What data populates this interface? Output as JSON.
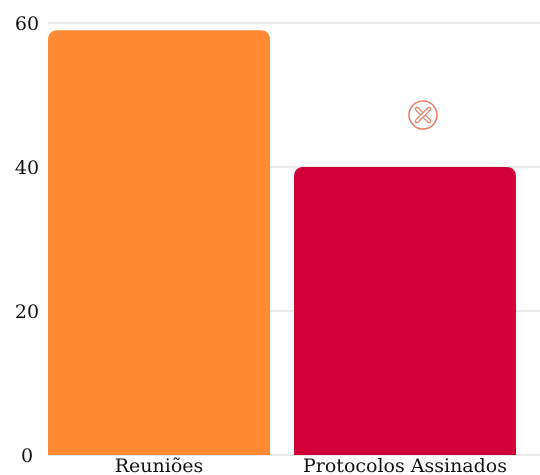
{
  "chart_data": {
    "type": "bar",
    "categories": [
      "Reuniões",
      "Protocolos Assinados"
    ],
    "values": [
      59,
      40
    ],
    "colors": [
      "#FF8A33",
      "#D20038"
    ],
    "ylim": [
      0,
      60
    ],
    "yticks": [
      0,
      20,
      40,
      60
    ],
    "grid": true,
    "title": "",
    "xlabel": "",
    "ylabel": ""
  },
  "annotation": {
    "icon": "close-circle-icon",
    "color": "#E8806E"
  }
}
